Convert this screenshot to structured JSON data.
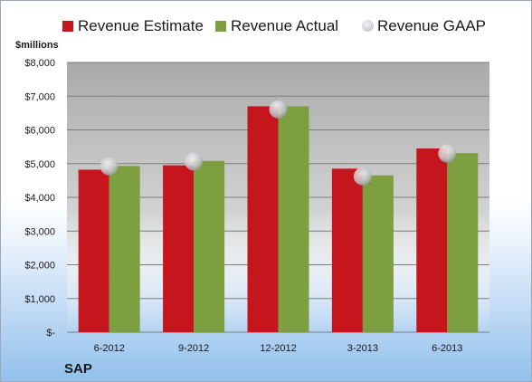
{
  "legend": {
    "estimate_label": "Revenue Estimate",
    "actual_label": "Revenue Actual",
    "gaap_label": "Revenue GAAP"
  },
  "unit_label": "$millions",
  "company_label": "SAP",
  "colors": {
    "estimate": "#c4161c",
    "actual": "#7e9f3f",
    "gaap": "#c9cbcf"
  },
  "chart_data": {
    "type": "bar",
    "categories": [
      "6-2012",
      "9-2012",
      "12-2012",
      "3-2013",
      "6-2013"
    ],
    "series": [
      {
        "name": "Revenue Estimate",
        "values": [
          4820,
          4950,
          6700,
          4850,
          5450
        ]
      },
      {
        "name": "Revenue Actual",
        "values": [
          4930,
          5080,
          6700,
          4650,
          5310
        ]
      },
      {
        "name": "Revenue GAAP",
        "values": [
          4920,
          5060,
          6610,
          4620,
          5300
        ],
        "style": "marker"
      }
    ],
    "ylabel": "$millions",
    "ylim": [
      0,
      8000
    ],
    "yticks": [
      0,
      1000,
      2000,
      3000,
      4000,
      5000,
      6000,
      7000,
      8000
    ],
    "ytick_labels": [
      "$-",
      "$1,000",
      "$2,000",
      "$3,000",
      "$4,000",
      "$5,000",
      "$6,000",
      "$7,000",
      "$8,000"
    ],
    "grid": true,
    "legend_position": "top"
  }
}
